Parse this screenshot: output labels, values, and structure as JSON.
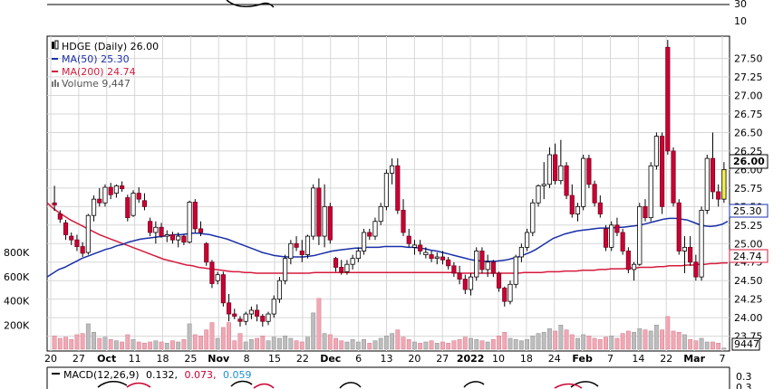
{
  "chart_data": {
    "type": "candlestick",
    "ticker_label": "HDGE (Daily) 26.00",
    "legend": {
      "ma50": "MA(50) 25.30",
      "ma200": "MA(200) 24.74",
      "volume": "Volume 9,447"
    },
    "price_axis": {
      "ticks": [
        "23.75",
        "24.00",
        "24.25",
        "24.50",
        "24.75",
        "25.00",
        "25.25",
        "25.50",
        "25.75",
        "26.00",
        "26.25",
        "26.50",
        "26.75",
        "27.00",
        "27.25",
        "27.50"
      ],
      "ylim": [
        23.55,
        27.8
      ],
      "badges": {
        "last": "26.00",
        "ma50": "25.30",
        "ma200": "24.74"
      }
    },
    "volume_axis": {
      "ticks": [
        "200K",
        "400K",
        "600K",
        "800K"
      ],
      "badge": "9447"
    },
    "top_panel_ticks": [
      "30",
      "10"
    ],
    "x_axis_labels": [
      "20",
      "27",
      "Oct",
      "11",
      "18",
      "25",
      "Nov",
      "8",
      "15",
      "22",
      "Dec",
      "6",
      "13",
      "20",
      "27",
      "2022",
      "10",
      "18",
      "24",
      "Feb",
      "7",
      "14",
      "22",
      "Mar",
      "7"
    ],
    "macd": {
      "label": "MACD(12,26,9)",
      "macd": "0.132,",
      "signal": "0.073,",
      "hist": "0.059",
      "ticks": [
        "0.3",
        "0.3"
      ]
    },
    "colors": {
      "up": "#ffffff",
      "down": "#cc0033",
      "ma50": "#1a2fa8",
      "ma200": "#d61a3c",
      "volume_up": "#bdbdbd",
      "volume_down": "#f0a8b4",
      "grid": "#d7d7d7",
      "last_badge": "#f2f24a"
    },
    "candles": [
      {
        "o": 25.55,
        "h": 25.78,
        "l": 25.44,
        "c": 25.52,
        "v": 110000
      },
      {
        "o": 25.4,
        "h": 25.45,
        "l": 25.28,
        "c": 25.33,
        "v": 90000
      },
      {
        "o": 25.28,
        "h": 25.32,
        "l": 25.05,
        "c": 25.12,
        "v": 100000
      },
      {
        "o": 25.1,
        "h": 25.15,
        "l": 24.98,
        "c": 25.05,
        "v": 80000
      },
      {
        "o": 25.05,
        "h": 25.12,
        "l": 24.9,
        "c": 24.96,
        "v": 120000
      },
      {
        "o": 24.96,
        "h": 25.02,
        "l": 24.82,
        "c": 24.87,
        "v": 130000
      },
      {
        "o": 24.88,
        "h": 25.4,
        "l": 24.85,
        "c": 25.38,
        "v": 210000
      },
      {
        "o": 25.38,
        "h": 25.65,
        "l": 25.3,
        "c": 25.6,
        "v": 140000
      },
      {
        "o": 25.6,
        "h": 25.75,
        "l": 25.5,
        "c": 25.55,
        "v": 90000
      },
      {
        "o": 25.55,
        "h": 25.8,
        "l": 25.5,
        "c": 25.76,
        "v": 100000
      },
      {
        "o": 25.76,
        "h": 25.82,
        "l": 25.6,
        "c": 25.66,
        "v": 80000
      },
      {
        "o": 25.68,
        "h": 25.8,
        "l": 25.62,
        "c": 25.78,
        "v": 70000
      },
      {
        "o": 25.78,
        "h": 25.84,
        "l": 25.7,
        "c": 25.74,
        "v": 60000
      },
      {
        "o": 25.62,
        "h": 25.66,
        "l": 25.3,
        "c": 25.35,
        "v": 120000
      },
      {
        "o": 25.38,
        "h": 25.72,
        "l": 25.36,
        "c": 25.68,
        "v": 80000
      },
      {
        "o": 25.68,
        "h": 25.76,
        "l": 25.55,
        "c": 25.6,
        "v": 60000
      },
      {
        "o": 25.58,
        "h": 25.68,
        "l": 25.45,
        "c": 25.5,
        "v": 50000
      },
      {
        "o": 25.3,
        "h": 25.35,
        "l": 25.1,
        "c": 25.15,
        "v": 60000
      },
      {
        "o": 25.15,
        "h": 25.3,
        "l": 25.0,
        "c": 25.22,
        "v": 70000
      },
      {
        "o": 25.22,
        "h": 25.28,
        "l": 25.08,
        "c": 25.1,
        "v": 60000
      },
      {
        "o": 25.1,
        "h": 25.18,
        "l": 25.02,
        "c": 25.12,
        "v": 50000
      },
      {
        "o": 25.12,
        "h": 25.16,
        "l": 25.0,
        "c": 25.05,
        "v": 70000
      },
      {
        "o": 25.05,
        "h": 25.15,
        "l": 24.95,
        "c": 25.1,
        "v": 60000
      },
      {
        "o": 25.1,
        "h": 25.12,
        "l": 24.98,
        "c": 25.02,
        "v": 80000
      },
      {
        "o": 25.02,
        "h": 25.58,
        "l": 25.0,
        "c": 25.56,
        "v": 210000
      },
      {
        "o": 25.56,
        "h": 25.6,
        "l": 25.15,
        "c": 25.2,
        "v": 120000
      },
      {
        "o": 25.2,
        "h": 25.3,
        "l": 25.1,
        "c": 25.15,
        "v": 110000
      },
      {
        "o": 25.0,
        "h": 25.02,
        "l": 24.7,
        "c": 24.75,
        "v": 160000
      },
      {
        "o": 24.75,
        "h": 24.78,
        "l": 24.4,
        "c": 24.46,
        "v": 220000
      },
      {
        "o": 24.5,
        "h": 24.62,
        "l": 24.45,
        "c": 24.58,
        "v": 90000
      },
      {
        "o": 24.58,
        "h": 24.62,
        "l": 24.15,
        "c": 24.2,
        "v": 180000
      },
      {
        "o": 24.2,
        "h": 24.32,
        "l": 23.95,
        "c": 24.05,
        "v": 220000
      },
      {
        "o": 24.05,
        "h": 24.12,
        "l": 23.98,
        "c": 24.02,
        "v": 70000
      },
      {
        "o": 23.98,
        "h": 24.02,
        "l": 23.88,
        "c": 23.95,
        "v": 130000
      },
      {
        "o": 23.95,
        "h": 24.08,
        "l": 23.9,
        "c": 24.05,
        "v": 60000
      },
      {
        "o": 24.05,
        "h": 24.15,
        "l": 23.98,
        "c": 24.1,
        "v": 80000
      },
      {
        "o": 24.1,
        "h": 24.18,
        "l": 23.95,
        "c": 24.02,
        "v": 90000
      },
      {
        "o": 24.02,
        "h": 24.05,
        "l": 23.88,
        "c": 23.95,
        "v": 110000
      },
      {
        "o": 23.95,
        "h": 24.08,
        "l": 23.9,
        "c": 24.05,
        "v": 70000
      },
      {
        "o": 24.05,
        "h": 24.3,
        "l": 24.0,
        "c": 24.25,
        "v": 100000
      },
      {
        "o": 24.25,
        "h": 24.55,
        "l": 24.2,
        "c": 24.5,
        "v": 90000
      },
      {
        "o": 24.5,
        "h": 24.85,
        "l": 24.45,
        "c": 24.8,
        "v": 110000
      },
      {
        "o": 24.8,
        "h": 25.05,
        "l": 24.72,
        "c": 25.0,
        "v": 90000
      },
      {
        "o": 25.0,
        "h": 25.1,
        "l": 24.9,
        "c": 24.95,
        "v": 70000
      },
      {
        "o": 24.9,
        "h": 25.05,
        "l": 24.75,
        "c": 24.85,
        "v": 60000
      },
      {
        "o": 24.85,
        "h": 25.12,
        "l": 24.8,
        "c": 25.1,
        "v": 100000
      },
      {
        "o": 25.1,
        "h": 25.8,
        "l": 25.05,
        "c": 25.75,
        "v": 300000
      },
      {
        "o": 25.75,
        "h": 25.88,
        "l": 24.98,
        "c": 25.1,
        "v": 420000
      },
      {
        "o": 25.1,
        "h": 25.8,
        "l": 24.95,
        "c": 25.5,
        "v": 130000
      },
      {
        "o": 25.5,
        "h": 25.55,
        "l": 25.0,
        "c": 25.05,
        "v": 120000
      },
      {
        "o": 24.8,
        "h": 24.82,
        "l": 24.62,
        "c": 24.68,
        "v": 90000
      },
      {
        "o": 24.68,
        "h": 24.78,
        "l": 24.58,
        "c": 24.62,
        "v": 70000
      },
      {
        "o": 24.62,
        "h": 24.78,
        "l": 24.58,
        "c": 24.72,
        "v": 60000
      },
      {
        "o": 24.72,
        "h": 24.85,
        "l": 24.65,
        "c": 24.8,
        "v": 80000
      },
      {
        "o": 24.8,
        "h": 24.95,
        "l": 24.75,
        "c": 24.9,
        "v": 60000
      },
      {
        "o": 24.9,
        "h": 25.2,
        "l": 24.85,
        "c": 25.15,
        "v": 80000
      },
      {
        "o": 25.15,
        "h": 25.2,
        "l": 25.05,
        "c": 25.1,
        "v": 50000
      },
      {
        "o": 25.1,
        "h": 25.35,
        "l": 25.05,
        "c": 25.3,
        "v": 70000
      },
      {
        "o": 25.3,
        "h": 25.55,
        "l": 25.25,
        "c": 25.5,
        "v": 90000
      },
      {
        "o": 25.5,
        "h": 26.0,
        "l": 25.45,
        "c": 25.95,
        "v": 110000
      },
      {
        "o": 25.95,
        "h": 26.15,
        "l": 25.8,
        "c": 26.05,
        "v": 130000
      },
      {
        "o": 26.05,
        "h": 26.15,
        "l": 25.4,
        "c": 25.45,
        "v": 160000
      },
      {
        "o": 25.45,
        "h": 25.6,
        "l": 25.1,
        "c": 25.15,
        "v": 100000
      },
      {
        "o": 25.1,
        "h": 25.2,
        "l": 24.95,
        "c": 25.0,
        "v": 80000
      },
      {
        "o": 24.95,
        "h": 25.05,
        "l": 24.85,
        "c": 24.98,
        "v": 60000
      },
      {
        "o": 24.98,
        "h": 25.05,
        "l": 24.85,
        "c": 24.9,
        "v": 50000
      },
      {
        "o": 24.85,
        "h": 24.95,
        "l": 24.8,
        "c": 24.88,
        "v": 60000
      },
      {
        "o": 24.85,
        "h": 24.9,
        "l": 24.75,
        "c": 24.8,
        "v": 70000
      },
      {
        "o": 24.8,
        "h": 24.88,
        "l": 24.72,
        "c": 24.82,
        "v": 50000
      },
      {
        "o": 24.82,
        "h": 24.9,
        "l": 24.72,
        "c": 24.78,
        "v": 60000
      },
      {
        "o": 24.78,
        "h": 24.82,
        "l": 24.65,
        "c": 24.7,
        "v": 50000
      },
      {
        "o": 24.7,
        "h": 24.75,
        "l": 24.55,
        "c": 24.6,
        "v": 70000
      },
      {
        "o": 24.6,
        "h": 24.7,
        "l": 24.45,
        "c": 24.52,
        "v": 80000
      },
      {
        "o": 24.52,
        "h": 24.58,
        "l": 24.32,
        "c": 24.38,
        "v": 100000
      },
      {
        "o": 24.38,
        "h": 24.6,
        "l": 24.3,
        "c": 24.55,
        "v": 90000
      },
      {
        "o": 24.55,
        "h": 24.95,
        "l": 24.5,
        "c": 24.9,
        "v": 80000
      },
      {
        "o": 24.9,
        "h": 24.95,
        "l": 24.6,
        "c": 24.65,
        "v": 70000
      },
      {
        "o": 24.65,
        "h": 24.85,
        "l": 24.55,
        "c": 24.75,
        "v": 60000
      },
      {
        "o": 24.75,
        "h": 24.78,
        "l": 24.55,
        "c": 24.6,
        "v": 80000
      },
      {
        "o": 24.6,
        "h": 24.62,
        "l": 24.35,
        "c": 24.4,
        "v": 110000
      },
      {
        "o": 24.4,
        "h": 24.42,
        "l": 24.15,
        "c": 24.22,
        "v": 140000
      },
      {
        "o": 24.22,
        "h": 24.5,
        "l": 24.18,
        "c": 24.45,
        "v": 90000
      },
      {
        "o": 24.45,
        "h": 24.85,
        "l": 24.4,
        "c": 24.82,
        "v": 80000
      },
      {
        "o": 24.82,
        "h": 25.0,
        "l": 24.75,
        "c": 24.95,
        "v": 70000
      },
      {
        "o": 24.95,
        "h": 25.2,
        "l": 24.9,
        "c": 25.15,
        "v": 80000
      },
      {
        "o": 25.15,
        "h": 25.6,
        "l": 25.1,
        "c": 25.55,
        "v": 110000
      },
      {
        "o": 25.55,
        "h": 25.8,
        "l": 25.5,
        "c": 25.78,
        "v": 130000
      },
      {
        "o": 25.78,
        "h": 26.1,
        "l": 25.6,
        "c": 25.8,
        "v": 140000
      },
      {
        "o": 25.8,
        "h": 26.3,
        "l": 25.75,
        "c": 26.2,
        "v": 170000
      },
      {
        "o": 26.2,
        "h": 26.35,
        "l": 25.8,
        "c": 25.85,
        "v": 150000
      },
      {
        "o": 25.85,
        "h": 26.4,
        "l": 25.8,
        "c": 26.05,
        "v": 200000
      },
      {
        "o": 26.05,
        "h": 26.1,
        "l": 25.6,
        "c": 25.65,
        "v": 160000
      },
      {
        "o": 25.65,
        "h": 25.8,
        "l": 25.35,
        "c": 25.4,
        "v": 120000
      },
      {
        "o": 25.4,
        "h": 25.55,
        "l": 25.3,
        "c": 25.5,
        "v": 90000
      },
      {
        "o": 25.5,
        "h": 26.2,
        "l": 25.45,
        "c": 26.15,
        "v": 120000
      },
      {
        "o": 26.15,
        "h": 26.2,
        "l": 25.75,
        "c": 25.8,
        "v": 110000
      },
      {
        "o": 25.8,
        "h": 25.85,
        "l": 25.5,
        "c": 25.55,
        "v": 90000
      },
      {
        "o": 25.55,
        "h": 25.65,
        "l": 25.35,
        "c": 25.4,
        "v": 80000
      },
      {
        "o": 25.2,
        "h": 25.25,
        "l": 24.9,
        "c": 24.95,
        "v": 100000
      },
      {
        "o": 24.95,
        "h": 25.3,
        "l": 24.9,
        "c": 25.25,
        "v": 110000
      },
      {
        "o": 25.25,
        "h": 25.35,
        "l": 25.1,
        "c": 25.15,
        "v": 90000
      },
      {
        "o": 25.15,
        "h": 25.2,
        "l": 24.85,
        "c": 24.9,
        "v": 130000
      },
      {
        "o": 24.9,
        "h": 24.95,
        "l": 24.6,
        "c": 24.65,
        "v": 150000
      },
      {
        "o": 24.65,
        "h": 24.75,
        "l": 24.5,
        "c": 24.72,
        "v": 140000
      },
      {
        "o": 24.72,
        "h": 25.55,
        "l": 24.7,
        "c": 25.5,
        "v": 170000
      },
      {
        "o": 25.5,
        "h": 25.6,
        "l": 25.3,
        "c": 25.35,
        "v": 160000
      },
      {
        "o": 25.35,
        "h": 26.1,
        "l": 25.3,
        "c": 26.05,
        "v": 150000
      },
      {
        "o": 26.05,
        "h": 26.5,
        "l": 26.0,
        "c": 26.45,
        "v": 200000
      },
      {
        "o": 26.45,
        "h": 26.5,
        "l": 25.4,
        "c": 25.5,
        "v": 160000
      },
      {
        "o": 27.65,
        "h": 27.75,
        "l": 26.2,
        "c": 26.25,
        "v": 270000
      },
      {
        "o": 26.25,
        "h": 26.3,
        "l": 25.5,
        "c": 25.55,
        "v": 150000
      },
      {
        "o": 25.55,
        "h": 25.6,
        "l": 24.85,
        "c": 24.9,
        "v": 140000
      },
      {
        "o": 24.9,
        "h": 25.1,
        "l": 24.6,
        "c": 24.95,
        "v": 120000
      },
      {
        "o": 24.95,
        "h": 25.1,
        "l": 24.7,
        "c": 24.75,
        "v": 80000
      },
      {
        "o": 24.75,
        "h": 24.85,
        "l": 24.5,
        "c": 24.55,
        "v": 70000
      },
      {
        "o": 24.55,
        "h": 25.5,
        "l": 24.5,
        "c": 25.45,
        "v": 90000
      },
      {
        "o": 25.45,
        "h": 26.2,
        "l": 25.4,
        "c": 26.15,
        "v": 60000
      },
      {
        "o": 26.15,
        "h": 26.5,
        "l": 25.6,
        "c": 25.7,
        "v": 60000
      },
      {
        "o": 25.7,
        "h": 25.8,
        "l": 25.5,
        "c": 25.6,
        "v": 50000
      },
      {
        "o": 25.6,
        "h": 26.1,
        "l": 25.55,
        "c": 26.0,
        "v": 9447
      }
    ],
    "ma50": [
      24.55,
      24.6,
      24.65,
      24.68,
      24.72,
      24.76,
      24.8,
      24.83,
      24.86,
      24.89,
      24.92,
      24.94,
      24.97,
      24.99,
      25.02,
      25.04,
      25.06,
      25.07,
      25.08,
      25.09,
      25.1,
      25.11,
      25.12,
      25.12,
      25.13,
      25.14,
      25.14,
      25.13,
      25.12,
      25.1,
      25.08,
      25.06,
      25.03,
      25.0,
      24.97,
      24.94,
      24.91,
      24.88,
      24.86,
      24.84,
      24.83,
      24.82,
      24.82,
      24.82,
      24.82,
      24.83,
      24.84,
      24.86,
      24.88,
      24.9,
      24.91,
      24.92,
      24.93,
      24.94,
      24.94,
      24.95,
      24.95,
      24.95,
      24.96,
      24.96,
      24.96,
      24.96,
      24.95,
      24.95,
      24.94,
      24.93,
      24.91,
      24.9,
      24.88,
      24.86,
      24.84,
      24.82,
      24.8,
      24.78,
      24.77,
      24.76,
      24.76,
      24.76,
      24.77,
      24.78,
      24.8,
      24.82,
      24.85,
      24.88,
      24.92,
      24.97,
      25.02,
      25.07,
      25.1,
      25.13,
      25.15,
      25.17,
      25.18,
      25.19,
      25.2,
      25.21,
      25.21,
      25.21,
      25.22,
      25.22,
      25.23,
      25.24,
      25.25,
      25.27,
      25.29,
      25.31,
      25.33,
      25.34,
      25.34,
      25.33,
      25.32,
      25.29,
      25.26,
      25.24,
      25.23,
      25.24,
      25.26,
      25.3
    ],
    "ma200": [
      25.55,
      25.48,
      25.42,
      25.37,
      25.32,
      25.28,
      25.24,
      25.2,
      25.16,
      25.12,
      25.09,
      25.06,
      25.03,
      25.0,
      24.97,
      24.94,
      24.91,
      24.88,
      24.85,
      24.82,
      24.79,
      24.77,
      24.75,
      24.73,
      24.71,
      24.7,
      24.68,
      24.67,
      24.66,
      24.65,
      24.64,
      24.63,
      24.62,
      24.62,
      24.61,
      24.61,
      24.6,
      24.6,
      24.6,
      24.6,
      24.6,
      24.6,
      24.6,
      24.6,
      24.6,
      24.6,
      24.61,
      24.61,
      24.61,
      24.61,
      24.61,
      24.61,
      24.61,
      24.61,
      24.61,
      24.61,
      24.61,
      24.61,
      24.61,
      24.61,
      24.61,
      24.61,
      24.61,
      24.61,
      24.61,
      24.61,
      24.61,
      24.61,
      24.61,
      24.61,
      24.61,
      24.6,
      24.6,
      24.6,
      24.6,
      24.6,
      24.6,
      24.6,
      24.6,
      24.6,
      24.6,
      24.6,
      24.61,
      24.61,
      24.61,
      24.61,
      24.62,
      24.62,
      24.62,
      24.63,
      24.63,
      24.63,
      24.64,
      24.64,
      24.64,
      24.65,
      24.65,
      24.66,
      24.66,
      24.66,
      24.67,
      24.67,
      24.68,
      24.68,
      24.68,
      24.69,
      24.69,
      24.7,
      24.7,
      24.7,
      24.71,
      24.71,
      24.72,
      24.72,
      24.73,
      24.73,
      24.74,
      24.74
    ]
  }
}
